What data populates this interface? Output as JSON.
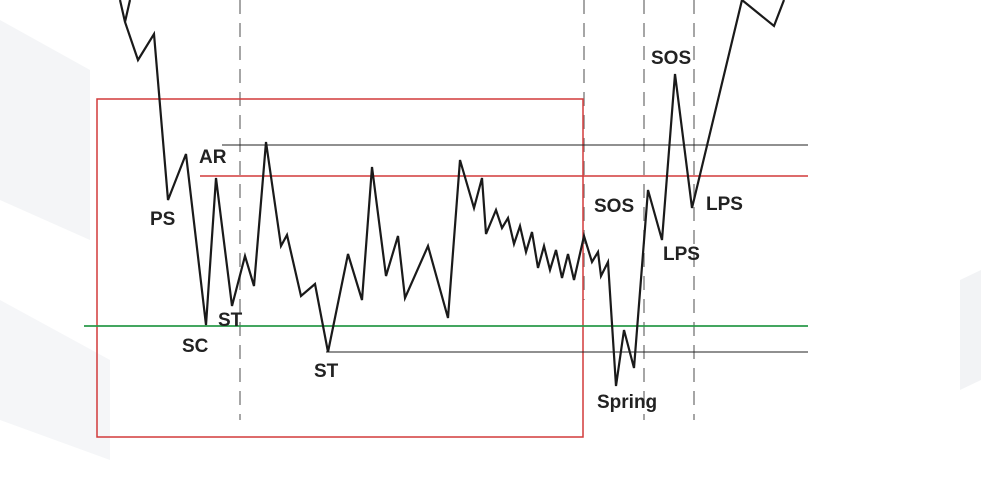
{
  "labels": {
    "ps": "PS",
    "ar": "AR",
    "sc": "SC",
    "st_first": "ST",
    "st_second": "ST",
    "sos_first": "SOS",
    "sos_second": "SOS",
    "lps_first": "LPS",
    "lps_second": "LPS",
    "spring": "Spring"
  },
  "colors": {
    "price_line": "#1a1a1a",
    "range_box": "#d23a3a",
    "resistance_line": "#d23a3a",
    "support_line": "#2a9a4a",
    "reference_line": "#222222",
    "phase_divider": "#888888",
    "background_shape": "#f2f3f5"
  },
  "elements": {
    "trading_range_box": "red rectangle",
    "phase_dividers": "dashed vertical lines",
    "price_path": "zigzag price line"
  }
}
